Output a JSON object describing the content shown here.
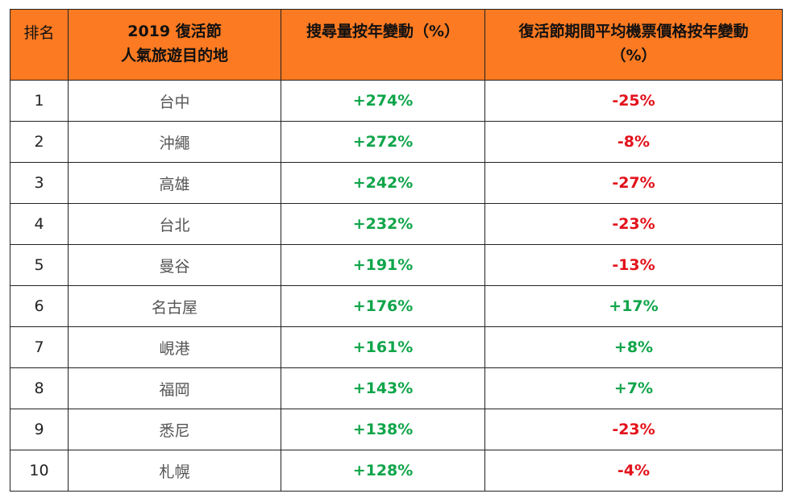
{
  "headers": {
    "rank": "排名",
    "destination_line1": "2019 復活節",
    "destination_line2": "人氣旅遊目的地",
    "search_change": "搜尋量按年變動（%）",
    "price_change_line1": "復活節期間平均機票價格按年變動",
    "price_change_line2": "（%）"
  },
  "rows": [
    {
      "rank": "1",
      "destination": "台中",
      "search": "+274%",
      "price": "-25%",
      "price_sign": "neg"
    },
    {
      "rank": "2",
      "destination": "沖繩",
      "search": "+272%",
      "price": "-8%",
      "price_sign": "neg"
    },
    {
      "rank": "3",
      "destination": "高雄",
      "search": "+242%",
      "price": "-27%",
      "price_sign": "neg"
    },
    {
      "rank": "4",
      "destination": "台北",
      "search": "+232%",
      "price": "-23%",
      "price_sign": "neg"
    },
    {
      "rank": "5",
      "destination": "曼谷",
      "search": "+191%",
      "price": "-13%",
      "price_sign": "neg"
    },
    {
      "rank": "6",
      "destination": "名古屋",
      "search": "+176%",
      "price": "+17%",
      "price_sign": "pos"
    },
    {
      "rank": "7",
      "destination": "峴港",
      "search": "+161%",
      "price": "+8%",
      "price_sign": "pos"
    },
    {
      "rank": "8",
      "destination": "福岡",
      "search": "+143%",
      "price": "+7%",
      "price_sign": "pos"
    },
    {
      "rank": "9",
      "destination": "悉尼",
      "search": "+138%",
      "price": "-23%",
      "price_sign": "neg"
    },
    {
      "rank": "10",
      "destination": "札幌",
      "search": "+128%",
      "price": "-4%",
      "price_sign": "neg"
    }
  ],
  "colors": {
    "header_bg": "#fc7a22",
    "positive": "#10a54a",
    "negative": "#e3121b"
  }
}
